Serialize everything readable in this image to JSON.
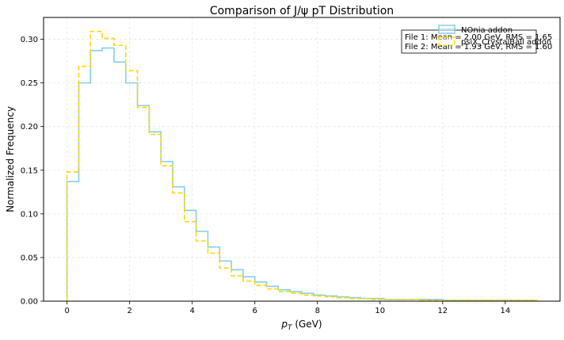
{
  "chart_data": {
    "type": "histogram",
    "title": "Comparison of J/ψ pT Distribution",
    "xlabel_base": "p",
    "xlabel_sub": "T",
    "xlabel_unit": " (GeV)",
    "ylabel": "Normalized Frequency",
    "xlim": [
      -0.75,
      15.75
    ],
    "ylim": [
      0,
      0.325
    ],
    "xticks": [
      0,
      2,
      4,
      6,
      8,
      10,
      12,
      14
    ],
    "yticks": [
      0.0,
      0.05,
      0.1,
      0.15,
      0.2,
      0.25,
      0.3
    ],
    "grid": true,
    "legend_position": "top-right",
    "bin_edges": [
      0,
      0.375,
      0.75,
      1.125,
      1.5,
      1.875,
      2.25,
      2.625,
      3.0,
      3.375,
      3.75,
      4.125,
      4.5,
      4.875,
      5.25,
      5.625,
      6.0,
      6.375,
      6.75,
      7.125,
      7.5,
      7.875,
      8.25,
      8.625,
      9.0,
      9.375,
      9.75,
      10.125,
      10.5,
      10.875,
      11.25,
      11.625,
      12.0,
      12.375,
      12.75,
      13.125,
      13.5,
      13.875,
      14.25,
      14.625,
      15.0
    ],
    "series": [
      {
        "name": "NOnia addon",
        "color": "#87ceeb",
        "style": "solid",
        "values": [
          0.137,
          0.25,
          0.287,
          0.29,
          0.274,
          0.25,
          0.224,
          0.194,
          0.16,
          0.131,
          0.104,
          0.08,
          0.062,
          0.046,
          0.036,
          0.028,
          0.022,
          0.017,
          0.013,
          0.011,
          0.009,
          0.007,
          0.006,
          0.005,
          0.004,
          0.003,
          0.003,
          0.002,
          0.002,
          0.002,
          0.002,
          0.002,
          0.001,
          0.001,
          0.001,
          0.001,
          0.001,
          0.001,
          0.001,
          0.001
        ]
      },
      {
        "name": "psiX_CrystalBall addon",
        "color": "#ffd700",
        "style": "dashed",
        "values": [
          0.148,
          0.269,
          0.309,
          0.301,
          0.293,
          0.264,
          0.222,
          0.191,
          0.155,
          0.124,
          0.091,
          0.069,
          0.055,
          0.038,
          0.029,
          0.023,
          0.018,
          0.014,
          0.011,
          0.009,
          0.007,
          0.006,
          0.005,
          0.004,
          0.003,
          0.003,
          0.002,
          0.002,
          0.002,
          0.002,
          0.001,
          0.001,
          0.001,
          0.001,
          0.001,
          0.001,
          0.001,
          0.001,
          0.001,
          0.001
        ]
      }
    ],
    "stats_box": {
      "line1": "File 1: Mean = 2.00 GeV, RMS = 1.65",
      "line2": "File 2: Mean = 1.93 GeV, RMS = 1.60"
    }
  }
}
